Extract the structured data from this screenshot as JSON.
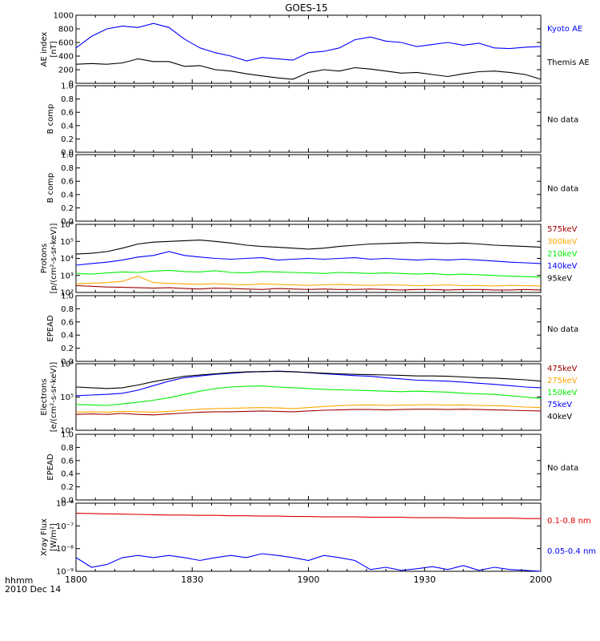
{
  "title": "GOES-15",
  "x_axis": {
    "ticks": [
      "1800",
      "1830",
      "1900",
      "1930",
      "2000"
    ],
    "corner_label_1": "hhmm",
    "corner_label_2": "2010 Dec 14"
  },
  "chart_data": [
    {
      "type": "line",
      "panel": "ae-index",
      "ylabel_lines": [
        "AE index",
        "[nT]"
      ],
      "ylim": [
        0,
        1000
      ],
      "scale": "linear",
      "yticks": [
        "0",
        "200",
        "400",
        "600",
        "800",
        "1000"
      ],
      "x_minutes": [
        0,
        4,
        8,
        12,
        16,
        20,
        24,
        28,
        32,
        36,
        40,
        44,
        48,
        52,
        56,
        60,
        64,
        68,
        72,
        76,
        80,
        84,
        88,
        92,
        96,
        100,
        104,
        108,
        112,
        116,
        120
      ],
      "series": [
        {
          "name": "Kyoto AE",
          "color": "#0000ff",
          "values": [
            520,
            690,
            800,
            840,
            820,
            880,
            820,
            650,
            520,
            450,
            400,
            330,
            380,
            360,
            340,
            450,
            470,
            520,
            640,
            680,
            620,
            600,
            540,
            570,
            600,
            560,
            590,
            520,
            510,
            530,
            540
          ]
        },
        {
          "name": "Themis AE",
          "color": "#000000",
          "values": [
            280,
            290,
            280,
            300,
            360,
            320,
            320,
            250,
            260,
            200,
            180,
            140,
            110,
            80,
            60,
            160,
            200,
            180,
            230,
            210,
            180,
            150,
            160,
            130,
            100,
            140,
            170,
            180,
            160,
            130,
            60
          ]
        }
      ]
    },
    {
      "type": "line",
      "panel": "b-comp-1",
      "ylabel_lines": [
        "B comp"
      ],
      "ylim": [
        0,
        1
      ],
      "scale": "linear",
      "yticks": [
        "0.0",
        "0.2",
        "0.4",
        "0.6",
        "0.8",
        "1.0"
      ],
      "series": [],
      "note": "No data"
    },
    {
      "type": "line",
      "panel": "b-comp-2",
      "ylabel_lines": [
        "B comp"
      ],
      "ylim": [
        0,
        1
      ],
      "scale": "linear",
      "yticks": [
        "0.0",
        "0.2",
        "0.4",
        "0.6",
        "0.8",
        "1.0"
      ],
      "series": [],
      "note": "No data"
    },
    {
      "type": "line",
      "panel": "protons",
      "ylabel_lines": [
        "Protons",
        "[p/(cm²-s-sr-keV)]"
      ],
      "ylim": [
        100,
        1000000
      ],
      "scale": "log",
      "yticks": [
        "10²",
        "10³",
        "10⁴",
        "10⁵",
        "10⁶"
      ],
      "x_minutes": [
        0,
        4,
        8,
        12,
        16,
        20,
        24,
        28,
        32,
        36,
        40,
        44,
        48,
        52,
        56,
        60,
        64,
        68,
        72,
        76,
        80,
        84,
        88,
        92,
        96,
        100,
        104,
        108,
        112,
        116,
        120
      ],
      "series": [
        {
          "name": "575keV",
          "color": "#a00000",
          "values": [
            250,
            230,
            210,
            200,
            190,
            180,
            190,
            170,
            160,
            180,
            170,
            160,
            150,
            170,
            160,
            150,
            160,
            150,
            150,
            160,
            150,
            140,
            150,
            150,
            140,
            150,
            150,
            140,
            140,
            150,
            140
          ]
        },
        {
          "name": "300keV",
          "color": "#ffa500",
          "values": [
            320,
            350,
            380,
            450,
            900,
            380,
            340,
            320,
            300,
            330,
            300,
            280,
            320,
            300,
            280,
            260,
            280,
            300,
            270,
            260,
            280,
            270,
            250,
            260,
            280,
            250,
            260,
            240,
            260,
            250,
            240
          ]
        },
        {
          "name": "210keV",
          "color": "#00ee00",
          "values": [
            1300,
            1200,
            1400,
            1600,
            1500,
            1800,
            2000,
            1700,
            1600,
            1900,
            1500,
            1400,
            1700,
            1600,
            1500,
            1400,
            1300,
            1500,
            1400,
            1300,
            1400,
            1300,
            1200,
            1300,
            1100,
            1200,
            1100,
            1000,
            900,
            850,
            800
          ]
        },
        {
          "name": "140keV",
          "color": "#0000ff",
          "values": [
            4000,
            5000,
            6000,
            8000,
            12000,
            15000,
            25000,
            15000,
            12000,
            10000,
            9000,
            10000,
            11000,
            8000,
            9000,
            10000,
            9000,
            10000,
            11000,
            9000,
            10000,
            9000,
            8000,
            9000,
            8000,
            9000,
            8000,
            7000,
            6000,
            5500,
            5000
          ]
        },
        {
          "name": "95keV",
          "color": "#000000",
          "values": [
            18000,
            20000,
            25000,
            40000,
            70000,
            90000,
            100000,
            110000,
            120000,
            100000,
            80000,
            60000,
            50000,
            45000,
            40000,
            35000,
            40000,
            50000,
            60000,
            70000,
            75000,
            80000,
            85000,
            80000,
            75000,
            80000,
            70000,
            60000,
            55000,
            50000,
            45000
          ]
        }
      ]
    },
    {
      "type": "line",
      "panel": "epead-1",
      "ylabel_lines": [
        "EPEAD"
      ],
      "ylim": [
        0,
        1
      ],
      "scale": "linear",
      "yticks": [
        "0.0",
        "0.2",
        "0.4",
        "0.6",
        "0.8",
        "1.0"
      ],
      "series": [],
      "note": "No data"
    },
    {
      "type": "line",
      "panel": "electrons",
      "ylabel_lines": [
        "Electrons",
        "[e/(cm²-s-sr-keV)]"
      ],
      "ylim": [
        10000,
        1000000
      ],
      "scale": "log",
      "yticks": [
        "10⁴",
        "10⁵",
        "10⁶"
      ],
      "x_minutes": [
        0,
        4,
        8,
        12,
        16,
        20,
        24,
        28,
        32,
        36,
        40,
        44,
        48,
        52,
        56,
        60,
        64,
        68,
        72,
        76,
        80,
        84,
        88,
        92,
        96,
        100,
        104,
        108,
        112,
        116,
        120
      ],
      "series": [
        {
          "name": "475keV",
          "color": "#a00000",
          "values": [
            30000,
            31000,
            30000,
            32000,
            30000,
            29000,
            31000,
            33000,
            35000,
            36000,
            36000,
            37000,
            38000,
            37000,
            36000,
            38000,
            40000,
            41000,
            42000,
            42000,
            41000,
            42000,
            43000,
            43000,
            42000,
            43000,
            42000,
            41000,
            40000,
            39000,
            38000
          ]
        },
        {
          "name": "275keV",
          "color": "#ffa500",
          "values": [
            35000,
            36000,
            35000,
            37000,
            36000,
            35000,
            37000,
            40000,
            43000,
            45000,
            46000,
            47000,
            48000,
            47000,
            45000,
            48000,
            52000,
            55000,
            57000,
            58000,
            56000,
            57000,
            58000,
            59000,
            57000,
            58000,
            56000,
            55000,
            53000,
            50000,
            48000
          ]
        },
        {
          "name": "150keV",
          "color": "#00ee00",
          "values": [
            60000,
            58000,
            56000,
            62000,
            70000,
            80000,
            95000,
            120000,
            150000,
            180000,
            200000,
            210000,
            215000,
            200000,
            190000,
            180000,
            170000,
            165000,
            160000,
            155000,
            150000,
            145000,
            150000,
            145000,
            140000,
            130000,
            125000,
            120000,
            110000,
            100000,
            90000
          ]
        },
        {
          "name": "75keV",
          "color": "#0000ff",
          "values": [
            110000,
            115000,
            120000,
            130000,
            160000,
            220000,
            300000,
            380000,
            430000,
            480000,
            520000,
            560000,
            580000,
            600000,
            580000,
            540000,
            500000,
            470000,
            440000,
            420000,
            380000,
            350000,
            320000,
            310000,
            300000,
            280000,
            260000,
            240000,
            220000,
            200000,
            190000
          ]
        },
        {
          "name": "40keV",
          "color": "#000000",
          "values": [
            200000,
            190000,
            180000,
            190000,
            230000,
            290000,
            350000,
            420000,
            460000,
            500000,
            540000,
            570000,
            580000,
            590000,
            570000,
            550000,
            520000,
            500000,
            480000,
            470000,
            460000,
            450000,
            430000,
            430000,
            420000,
            400000,
            380000,
            370000,
            350000,
            330000,
            300000
          ]
        }
      ]
    },
    {
      "type": "line",
      "panel": "epead-2",
      "ylabel_lines": [
        "EPEAD"
      ],
      "ylim": [
        0,
        1
      ],
      "scale": "linear",
      "yticks": [
        "0.0",
        "0.2",
        "0.4",
        "0.6",
        "0.8",
        "1.0"
      ],
      "series": [],
      "note": "No data"
    },
    {
      "type": "line",
      "panel": "xray",
      "ylabel_lines": [
        "Xray Flux",
        "[W/m²]"
      ],
      "ylim": [
        1e-09,
        1e-06
      ],
      "scale": "log",
      "yticks": [
        "10⁻⁹",
        "10⁻⁸",
        "10⁻⁷",
        "10⁻⁶"
      ],
      "x_minutes": [
        0,
        4,
        8,
        12,
        16,
        20,
        24,
        28,
        32,
        36,
        40,
        44,
        48,
        52,
        56,
        60,
        64,
        68,
        72,
        76,
        80,
        84,
        88,
        92,
        96,
        100,
        104,
        108,
        112,
        116,
        120
      ],
      "series": [
        {
          "name": "0.1-0.8 nm",
          "color": "#dd0000",
          "values": [
            3.6e-07,
            3.5e-07,
            3.4e-07,
            3.3e-07,
            3.2e-07,
            3.1e-07,
            3e-07,
            3e-07,
            2.9e-07,
            2.9e-07,
            2.8e-07,
            2.8e-07,
            2.7e-07,
            2.7e-07,
            2.6e-07,
            2.6e-07,
            2.5e-07,
            2.5e-07,
            2.5e-07,
            2.4e-07,
            2.4e-07,
            2.4e-07,
            2.3e-07,
            2.3e-07,
            2.3e-07,
            2.2e-07,
            2.2e-07,
            2.2e-07,
            2.2e-07,
            2.1e-07,
            2.1e-07
          ]
        },
        {
          "name": "0.05-0.4 nm",
          "color": "#0000ff",
          "values": [
            4e-09,
            1.5e-09,
            2e-09,
            4e-09,
            5e-09,
            4e-09,
            5e-09,
            4e-09,
            3e-09,
            4e-09,
            5e-09,
            4e-09,
            6e-09,
            5e-09,
            4e-09,
            3e-09,
            5e-09,
            4e-09,
            3e-09,
            1.2e-09,
            1.5e-09,
            1.1e-09,
            1.3e-09,
            1.6e-09,
            1.2e-09,
            1.8e-09,
            1.1e-09,
            1.5e-09,
            1.2e-09,
            1.1e-09,
            1e-09
          ]
        }
      ]
    }
  ]
}
